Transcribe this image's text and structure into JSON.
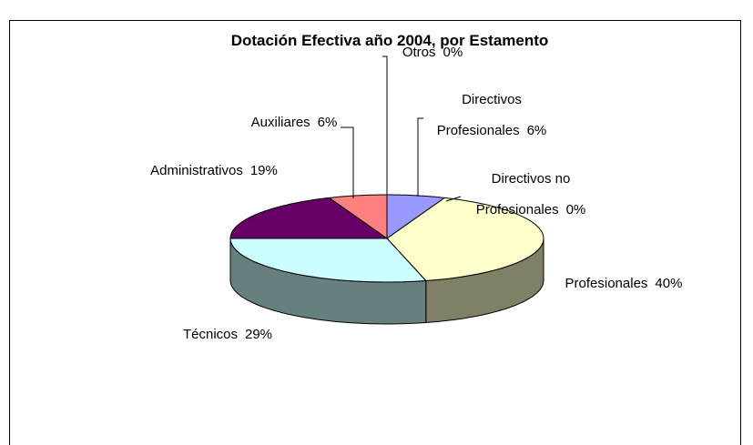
{
  "chart_data": {
    "type": "pie",
    "title": "Dotación Efectiva año 2004, por Estamento",
    "categories": [
      "Directivos Profesionales",
      "Directivos no Profesionales",
      "Profesionales",
      "Técnicos",
      "Administrativos",
      "Auxiliares",
      "Otros"
    ],
    "values": [
      6,
      0,
      40,
      29,
      19,
      6,
      0
    ],
    "value_labels": [
      "6%",
      "0%",
      "40%",
      "29%",
      "19%",
      "6%",
      "0%"
    ],
    "colors": [
      "#9999ff",
      "#993366",
      "#ffffcc",
      "#ccffff",
      "#660066",
      "#ff8080",
      "#0066cc"
    ]
  }
}
